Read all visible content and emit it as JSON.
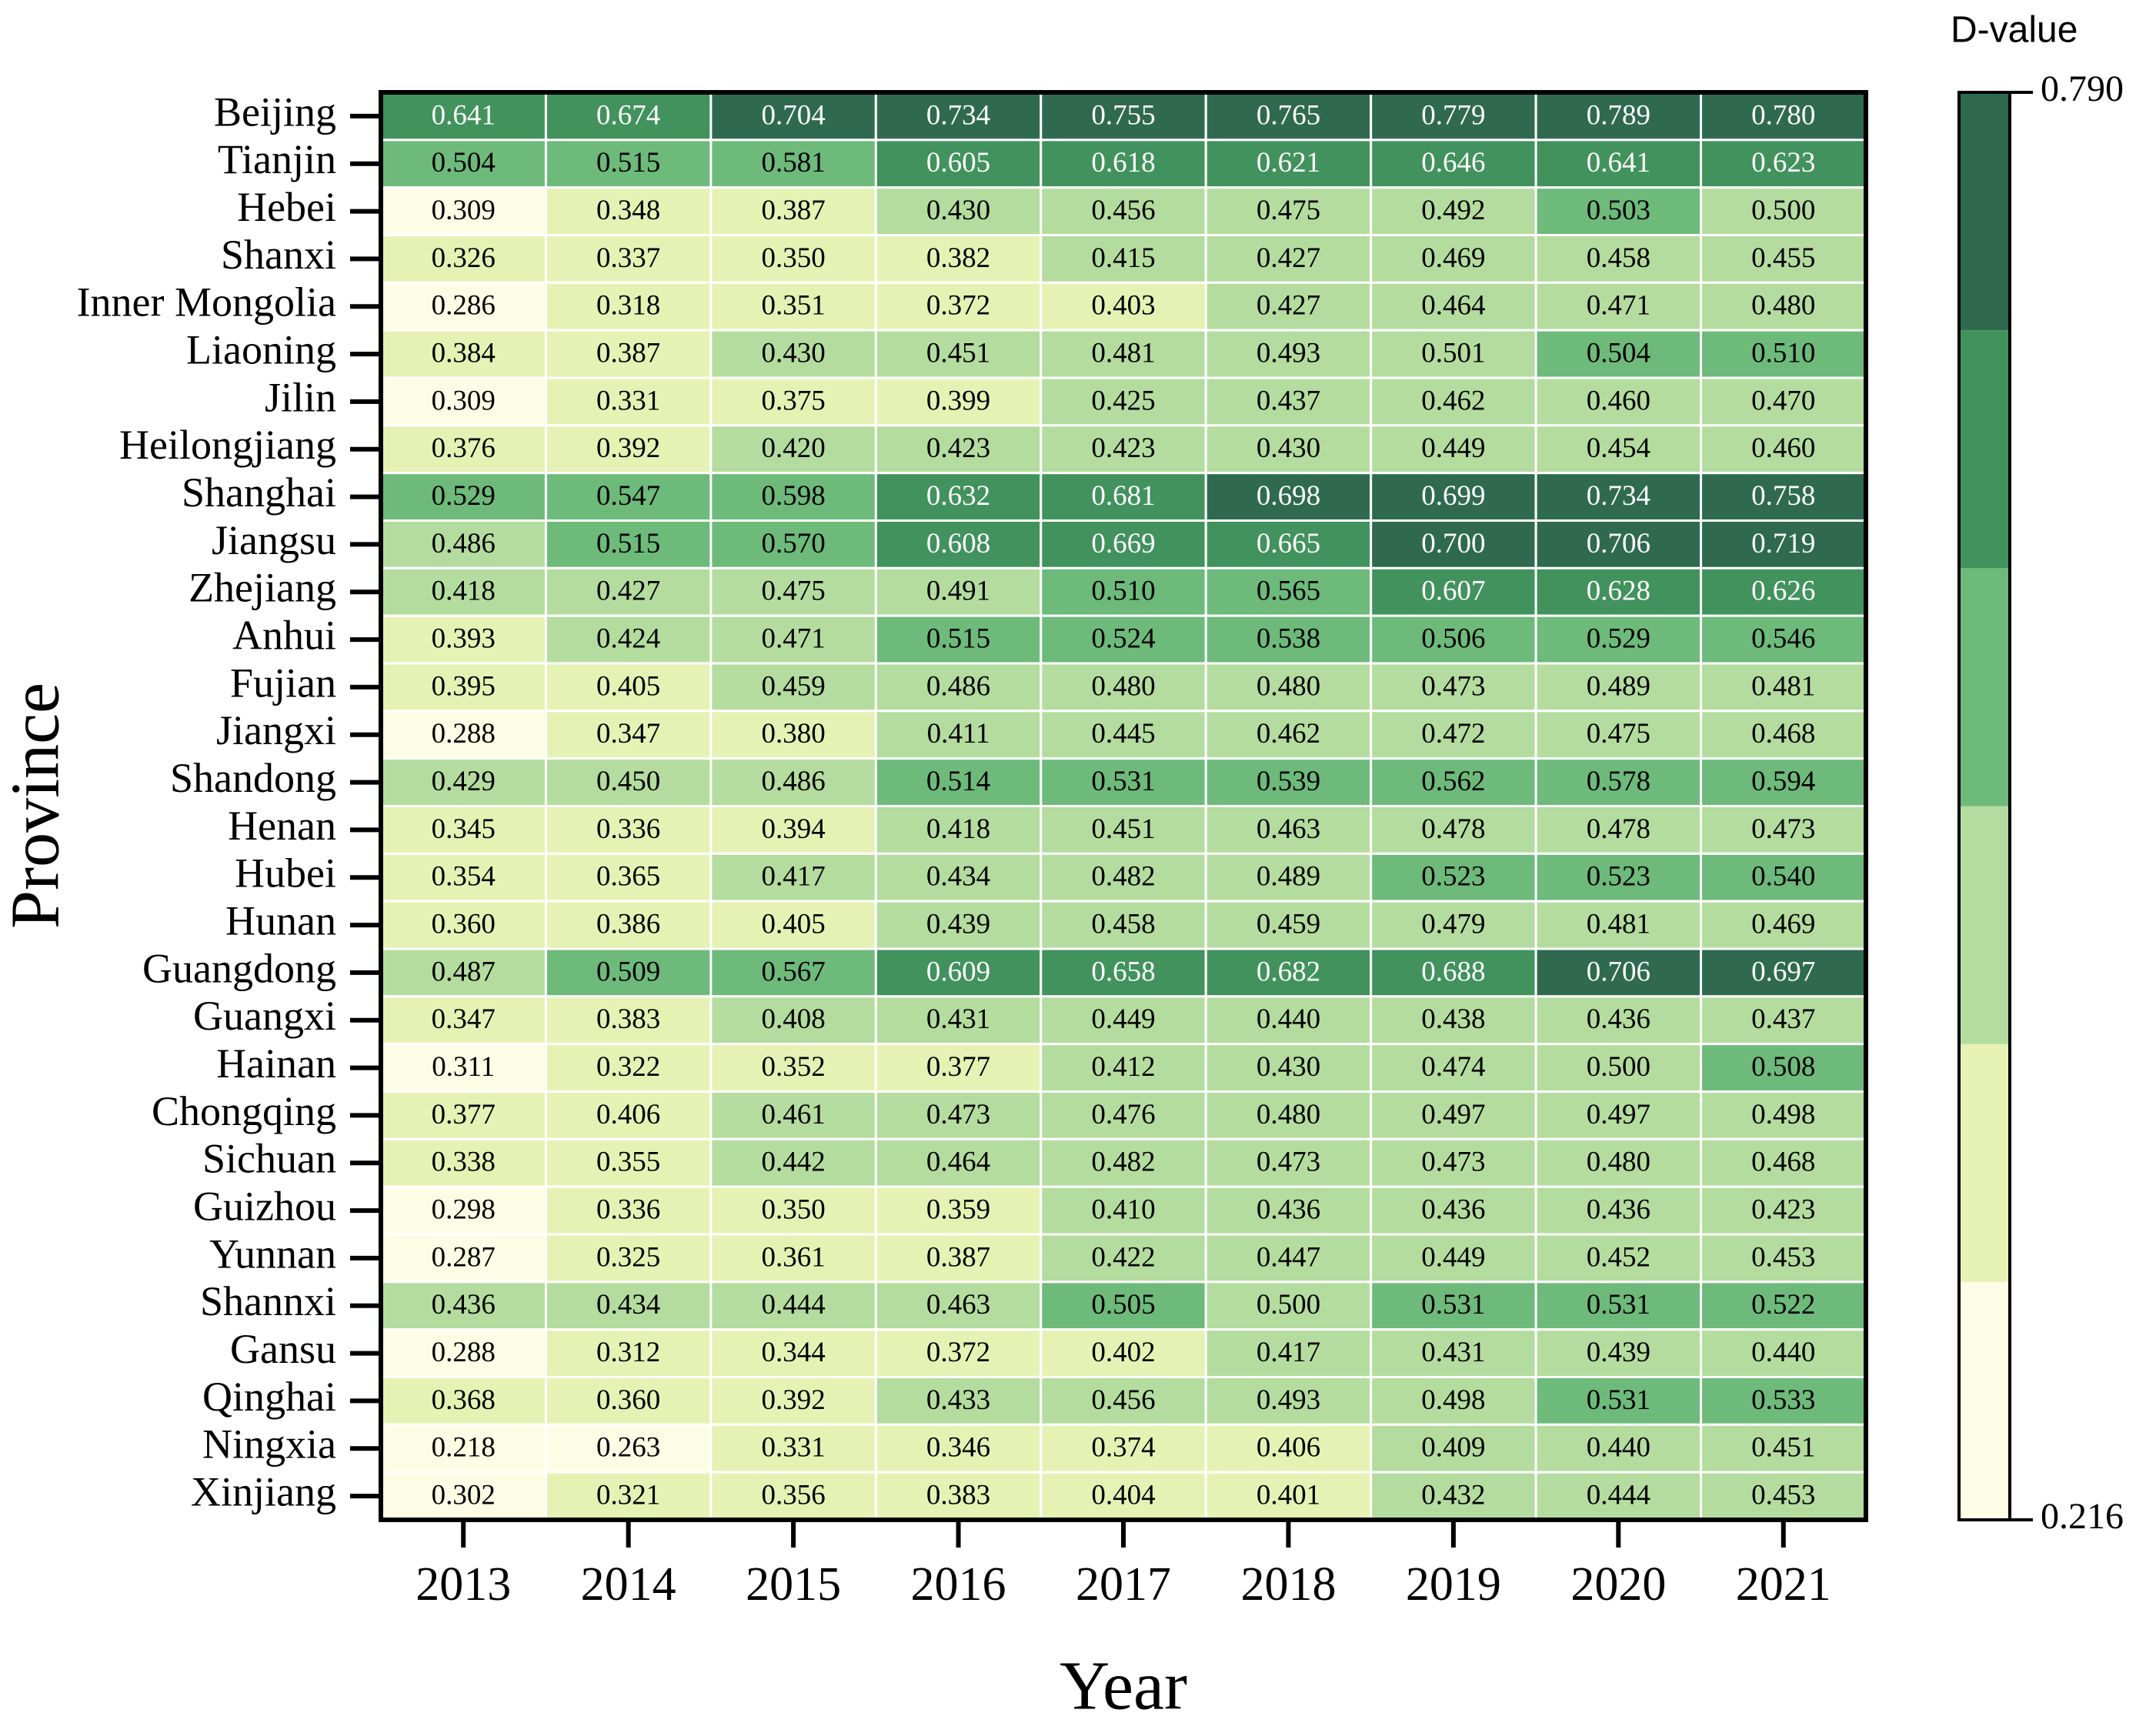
{
  "chart_data": {
    "type": "heatmap",
    "x_label": "Year",
    "y_label": "Province",
    "colorbar_label": "D-value",
    "x_categories": [
      "2013",
      "2014",
      "2015",
      "2016",
      "2017",
      "2018",
      "2019",
      "2020",
      "2021"
    ],
    "y_categories": [
      "Beijing",
      "Tianjin",
      "Hebei",
      "Shanxi",
      "Inner Mongolia",
      "Liaoning",
      "Jilin",
      "Heilongjiang",
      "Shanghai",
      "Jiangsu",
      "Zhejiang",
      "Anhui",
      "Fujian",
      "Jiangxi",
      "Shandong",
      "Henan",
      "Hubei",
      "Hunan",
      "Guangdong",
      "Guangxi",
      "Hainan",
      "Chongqing",
      "Sichuan",
      "Guizhou",
      "Yunnan",
      "Shannxi",
      "Gansu",
      "Qinghai",
      "Ningxia",
      "Xinjiang"
    ],
    "values": [
      [
        0.641,
        0.674,
        0.704,
        0.734,
        0.755,
        0.765,
        0.779,
        0.789,
        0.78
      ],
      [
        0.504,
        0.515,
        0.581,
        0.605,
        0.618,
        0.621,
        0.646,
        0.641,
        0.623
      ],
      [
        0.309,
        0.348,
        0.387,
        0.43,
        0.456,
        0.475,
        0.492,
        0.503,
        0.5
      ],
      [
        0.326,
        0.337,
        0.35,
        0.382,
        0.415,
        0.427,
        0.469,
        0.458,
        0.455
      ],
      [
        0.286,
        0.318,
        0.351,
        0.372,
        0.403,
        0.427,
        0.464,
        0.471,
        0.48
      ],
      [
        0.384,
        0.387,
        0.43,
        0.451,
        0.481,
        0.493,
        0.501,
        0.504,
        0.51
      ],
      [
        0.309,
        0.331,
        0.375,
        0.399,
        0.425,
        0.437,
        0.462,
        0.46,
        0.47
      ],
      [
        0.376,
        0.392,
        0.42,
        0.423,
        0.423,
        0.43,
        0.449,
        0.454,
        0.46
      ],
      [
        0.529,
        0.547,
        0.598,
        0.632,
        0.681,
        0.698,
        0.699,
        0.734,
        0.758
      ],
      [
        0.486,
        0.515,
        0.57,
        0.608,
        0.669,
        0.665,
        0.7,
        0.706,
        0.719
      ],
      [
        0.418,
        0.427,
        0.475,
        0.491,
        0.51,
        0.565,
        0.607,
        0.628,
        0.626
      ],
      [
        0.393,
        0.424,
        0.471,
        0.515,
        0.524,
        0.538,
        0.506,
        0.529,
        0.546
      ],
      [
        0.395,
        0.405,
        0.459,
        0.486,
        0.48,
        0.48,
        0.473,
        0.489,
        0.481
      ],
      [
        0.288,
        0.347,
        0.38,
        0.411,
        0.445,
        0.462,
        0.472,
        0.475,
        0.468
      ],
      [
        0.429,
        0.45,
        0.486,
        0.514,
        0.531,
        0.539,
        0.562,
        0.578,
        0.594
      ],
      [
        0.345,
        0.336,
        0.394,
        0.418,
        0.451,
        0.463,
        0.478,
        0.478,
        0.473
      ],
      [
        0.354,
        0.365,
        0.417,
        0.434,
        0.482,
        0.489,
        0.523,
        0.523,
        0.54
      ],
      [
        0.36,
        0.386,
        0.405,
        0.439,
        0.458,
        0.459,
        0.479,
        0.481,
        0.469
      ],
      [
        0.487,
        0.509,
        0.567,
        0.609,
        0.658,
        0.682,
        0.688,
        0.706,
        0.697
      ],
      [
        0.347,
        0.383,
        0.408,
        0.431,
        0.449,
        0.44,
        0.438,
        0.436,
        0.437
      ],
      [
        0.311,
        0.322,
        0.352,
        0.377,
        0.412,
        0.43,
        0.474,
        0.5,
        0.508
      ],
      [
        0.377,
        0.406,
        0.461,
        0.473,
        0.476,
        0.48,
        0.497,
        0.497,
        0.498
      ],
      [
        0.338,
        0.355,
        0.442,
        0.464,
        0.482,
        0.473,
        0.473,
        0.48,
        0.468
      ],
      [
        0.298,
        0.336,
        0.35,
        0.359,
        0.41,
        0.436,
        0.436,
        0.436,
        0.423
      ],
      [
        0.287,
        0.325,
        0.361,
        0.387,
        0.422,
        0.447,
        0.449,
        0.452,
        0.453
      ],
      [
        0.436,
        0.434,
        0.444,
        0.463,
        0.505,
        0.5,
        0.531,
        0.531,
        0.522
      ],
      [
        0.288,
        0.312,
        0.344,
        0.372,
        0.402,
        0.417,
        0.431,
        0.439,
        0.44
      ],
      [
        0.368,
        0.36,
        0.392,
        0.433,
        0.456,
        0.493,
        0.498,
        0.531,
        0.533
      ],
      [
        0.218,
        0.263,
        0.331,
        0.346,
        0.374,
        0.406,
        0.409,
        0.44,
        0.451
      ],
      [
        0.302,
        0.321,
        0.356,
        0.383,
        0.404,
        0.401,
        0.432,
        0.444,
        0.453
      ]
    ],
    "value_labels": [
      [
        "0.641",
        "0.674",
        "0.704",
        "0.734",
        "0.755",
        "0.765",
        "0.779",
        "0.789",
        "0.780"
      ],
      [
        "0.504",
        "0.515",
        "0.581",
        "0.605",
        "0.618",
        "0.621",
        "0.646",
        "0.641",
        "0.623"
      ],
      [
        "0.309",
        "0.348",
        "0.387",
        "0.430",
        "0.456",
        "0.475",
        "0.492",
        "0.503",
        "0.500"
      ],
      [
        "0.326",
        "0.337",
        "0.350",
        "0.382",
        "0.415",
        "0.427",
        "0.469",
        "0.458",
        "0.455"
      ],
      [
        "0.286",
        "0.318",
        "0.351",
        "0.372",
        "0.403",
        "0.427",
        "0.464",
        "0.471",
        "0.480"
      ],
      [
        "0.384",
        "0.387",
        "0.430",
        "0.451",
        "0.481",
        "0.493",
        "0.501",
        "0.504",
        "0.510"
      ],
      [
        "0.309",
        "0.331",
        "0.375",
        "0.399",
        "0.425",
        "0.437",
        "0.462",
        "0.460",
        "0.470"
      ],
      [
        "0.376",
        "0.392",
        "0.420",
        "0.423",
        "0.423",
        "0.430",
        "0.449",
        "0.454",
        "0.460"
      ],
      [
        "0.529",
        "0.547",
        "0.598",
        "0.632",
        "0.681",
        "0.698",
        "0.699",
        "0.734",
        "0.758"
      ],
      [
        "0.486",
        "0.515",
        "0.570",
        "0.608",
        "0.669",
        "0.665",
        "0.700",
        "0.706",
        "0.719"
      ],
      [
        "0.418",
        "0.427",
        "0.475",
        "0.491",
        "0.510",
        "0.565",
        "0.607",
        "0.628",
        "0.626"
      ],
      [
        "0.393",
        "0.424",
        "0.471",
        "0.515",
        "0.524",
        "0.538",
        "0.506",
        "0.529",
        "0.546"
      ],
      [
        "0.395",
        "0.405",
        "0.459",
        "0.486",
        "0.480",
        "0.480",
        "0.473",
        "0.489",
        "0.481"
      ],
      [
        "0.288",
        "0.347",
        "0.380",
        "0.411",
        "0.445",
        "0.462",
        "0.472",
        "0.475",
        "0.468"
      ],
      [
        "0.429",
        "0.450",
        "0.486",
        "0.514",
        "0.531",
        "0.539",
        "0.562",
        "0.578",
        "0.594"
      ],
      [
        "0.345",
        "0.336",
        "0.394",
        "0.418",
        "0.451",
        "0.463",
        "0.478",
        "0.478",
        "0.473"
      ],
      [
        "0.354",
        "0.365",
        "0.417",
        "0.434",
        "0.482",
        "0.489",
        "0.523",
        "0.523",
        "0.540"
      ],
      [
        "0.360",
        "0.386",
        "0.405",
        "0.439",
        "0.458",
        "0.459",
        "0.479",
        "0.481",
        "0.469"
      ],
      [
        "0.487",
        "0.509",
        "0.567",
        "0.609",
        "0.658",
        "0.682",
        "0.688",
        "0.706",
        "0.697"
      ],
      [
        "0.347",
        "0.383",
        "0.408",
        "0.431",
        "0.449",
        "0.440",
        "0.438",
        "0.436",
        "0.437"
      ],
      [
        "0.311",
        "0.322",
        "0.352",
        "0.377",
        "0.412",
        "0.430",
        "0.474",
        "0.500",
        "0.508"
      ],
      [
        "0.377",
        "0.406",
        "0.461",
        "0.473",
        "0.476",
        "0.480",
        "0.497",
        "0.497",
        "0.498"
      ],
      [
        "0.338",
        "0.355",
        "0.442",
        "0.464",
        "0.482",
        "0.473",
        "0.473",
        "0.480",
        "0.468"
      ],
      [
        "0.298",
        "0.336",
        "0.350",
        "0.359",
        "0.410",
        "0.436",
        "0.436",
        "0.436",
        "0.423"
      ],
      [
        "0.287",
        "0.325",
        "0.361",
        "0.387",
        "0.422",
        "0.447",
        "0.449",
        "0.452",
        "0.453"
      ],
      [
        "0.436",
        "0.434",
        "0.444",
        "0.463",
        "0.505",
        "0.500",
        "0.531",
        "0.531",
        "0.522"
      ],
      [
        "0.288",
        "0.312",
        "0.344",
        "0.372",
        "0.402",
        "0.417",
        "0.431",
        "0.439",
        "0.440"
      ],
      [
        "0.368",
        "0.360",
        "0.392",
        "0.433",
        "0.456",
        "0.493",
        "0.498",
        "0.531",
        "0.533"
      ],
      [
        "0.218",
        "0.263",
        "0.331",
        "0.346",
        "0.374",
        "0.406",
        "0.409",
        "0.440",
        "0.451"
      ],
      [
        "0.302",
        "0.321",
        "0.356",
        "0.383",
        "0.404",
        "0.401",
        "0.432",
        "0.444",
        "0.453"
      ]
    ],
    "zlim": [
      0.216,
      0.79
    ],
    "zticks": [
      {
        "value": 0.79,
        "label": "0.790"
      },
      0.216
    ],
    "colors": [
      "#fdfde6",
      "#e6f2b4",
      "#b4dc9e",
      "#6dba7b",
      "#42925d",
      "#2f6a50"
    ]
  }
}
